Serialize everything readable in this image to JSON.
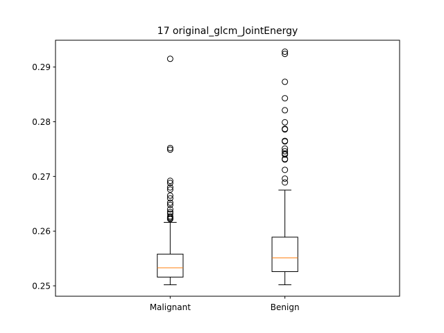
{
  "chart_data": {
    "type": "box",
    "title": "17 original_glcm_JointEnergy",
    "xlabel": "",
    "ylabel": "",
    "ylim": [
      0.2481,
      0.2949
    ],
    "yticks": [
      0.25,
      0.26,
      0.27,
      0.28,
      0.29
    ],
    "ytick_labels": [
      "0.25",
      "0.26",
      "0.27",
      "0.28",
      "0.29"
    ],
    "categories": [
      "Malignant",
      "Benign"
    ],
    "colors": {
      "box": "#000000",
      "median": "#ff7f0e",
      "flier": "#000000"
    },
    "boxes": [
      {
        "category": "Malignant",
        "whisker_low": 0.2502,
        "q1": 0.2516,
        "median": 0.2533,
        "q3": 0.2558,
        "whisker_high": 0.2616,
        "fliers": [
          0.2915,
          0.2752,
          0.2749,
          0.2692,
          0.2688,
          0.268,
          0.2676,
          0.2665,
          0.266,
          0.2652,
          0.2648,
          0.264,
          0.2635,
          0.2632,
          0.2627,
          0.2625,
          0.2623,
          0.2622
        ]
      },
      {
        "category": "Benign",
        "whisker_low": 0.2502,
        "q1": 0.2526,
        "median": 0.2551,
        "q3": 0.2589,
        "whisker_high": 0.2675,
        "fliers": [
          0.2928,
          0.2924,
          0.2873,
          0.2843,
          0.2821,
          0.2799,
          0.2787,
          0.2786,
          0.2765,
          0.2764,
          0.2751,
          0.2746,
          0.2742,
          0.274,
          0.2732,
          0.2731,
          0.2712,
          0.2696,
          0.2689
        ]
      }
    ]
  }
}
